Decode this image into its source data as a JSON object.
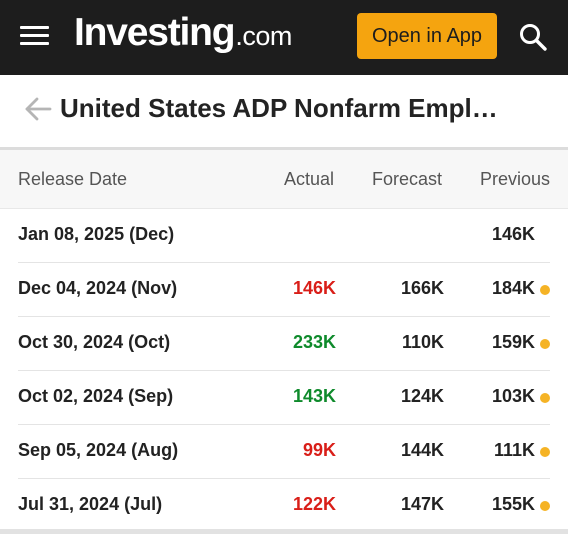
{
  "header": {
    "logo_brand": "Investing",
    "logo_tld": ".com",
    "open_app_label": "Open in App",
    "accent_color": "#f5a40f",
    "bg_color": "#1d1d1d"
  },
  "page": {
    "title": "United States ADP Nonfarm Empl…"
  },
  "table": {
    "headers": {
      "release_date": "Release Date",
      "actual": "Actual",
      "forecast": "Forecast",
      "previous": "Previous"
    },
    "rows": [
      {
        "date": "Jan 08, 2025 (Dec)",
        "actual": "",
        "actual_color": "",
        "forecast": "",
        "previous": "146K",
        "dot": false
      },
      {
        "date": "Dec 04, 2024 (Nov)",
        "actual": "146K",
        "actual_color": "red",
        "forecast": "166K",
        "previous": "184K",
        "dot": true
      },
      {
        "date": "Oct 30, 2024 (Oct)",
        "actual": "233K",
        "actual_color": "green",
        "forecast": "110K",
        "previous": "159K",
        "dot": true
      },
      {
        "date": "Oct 02, 2024 (Sep)",
        "actual": "143K",
        "actual_color": "green",
        "forecast": "124K",
        "previous": "103K",
        "dot": true
      },
      {
        "date": "Sep 05, 2024 (Aug)",
        "actual": "99K",
        "actual_color": "red",
        "forecast": "144K",
        "previous": "111K",
        "dot": true
      },
      {
        "date": "Jul 31, 2024 (Jul)",
        "actual": "122K",
        "actual_color": "red",
        "forecast": "147K",
        "previous": "155K",
        "dot": true
      }
    ]
  },
  "colors": {
    "negative": "#d91e18",
    "positive": "#0e8a2b",
    "revision_dot": "#f5b325"
  }
}
